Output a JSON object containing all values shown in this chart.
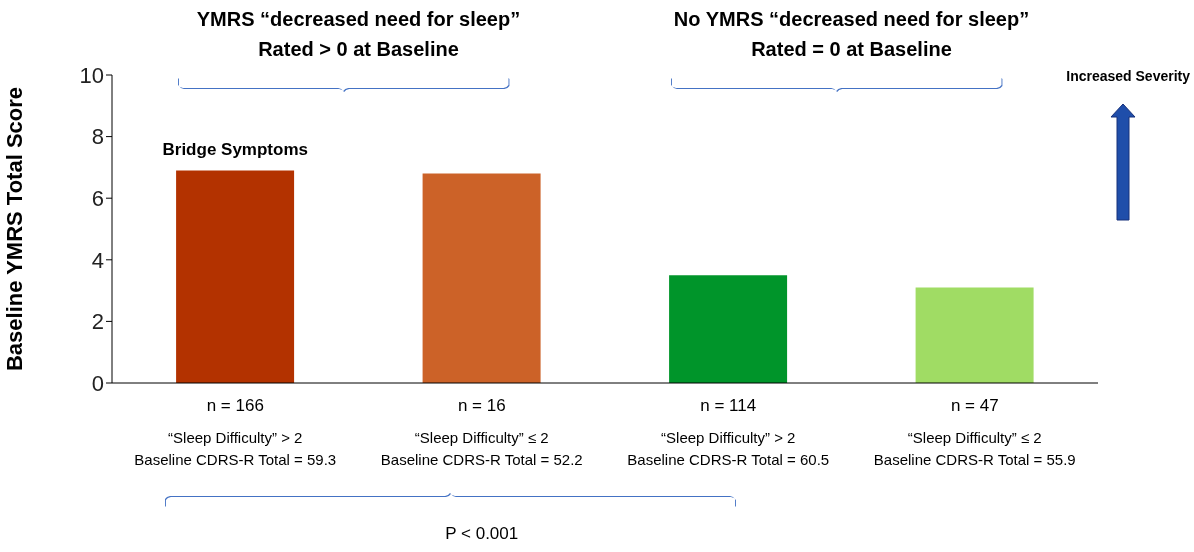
{
  "chart_data": {
    "type": "bar",
    "ylabel": "Baseline YMRS Total Score",
    "categories": [
      "n = 166\n“Sleep Difficulty” > 2\nBaseline CDRS-R Total = 59.3",
      "n = 16\n“Sleep Difficulty” ≤ 2\nBaseline CDRS-R Total = 52.2",
      "n = 114\n“Sleep Difficulty” > 2\nBaseline CDRS-R Total =  60.5",
      "n = 47\n“Sleep Difficulty” ≤ 2\nBaseline CDRS-R Total =  55.9"
    ],
    "values": [
      6.9,
      6.8,
      3.5,
      3.1
    ],
    "colors": [
      "#b33200",
      "#cc6228",
      "#00952a",
      "#a0dc64"
    ],
    "ylim": [
      0,
      10
    ],
    "yticks": [
      0,
      2,
      4,
      6,
      8,
      10
    ],
    "grid": false,
    "legend": false,
    "annotations": [
      "YMRS “decreased need for sleep”\nRated > 0 at Baseline",
      "No YMRS “decreased need for sleep”\nRated = 0 at Baseline",
      "Bridge Symptoms",
      "Increased Severity",
      "P < 0.001"
    ]
  }
}
